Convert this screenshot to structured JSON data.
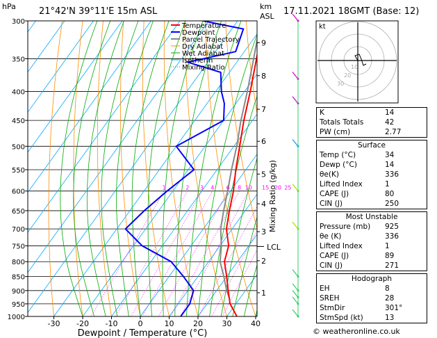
{
  "header": {
    "hpa_label": "hPa",
    "location": "21°42'N  39°11'E  15m  ASL",
    "km_label": "km",
    "asl_label": "ASL",
    "date": "17.11.2021  18GMT  (Base: 12)"
  },
  "chart_data": {
    "type": "skew-t",
    "xlabel": "Dewpoint / Temperature (°C)",
    "x_ticks": [
      -30,
      -20,
      -10,
      0,
      10,
      20,
      30,
      40
    ],
    "p_ticks": [
      300,
      350,
      400,
      450,
      500,
      550,
      600,
      650,
      700,
      750,
      800,
      850,
      900,
      950,
      1000
    ],
    "km_ticks": [
      {
        "label": "1",
        "p": 908
      },
      {
        "label": "2",
        "p": 797
      },
      {
        "label": "3",
        "p": 708
      },
      {
        "label": "4",
        "p": 632
      },
      {
        "label": "5",
        "p": 560
      },
      {
        "label": "6",
        "p": 490
      },
      {
        "label": "7",
        "p": 430
      },
      {
        "label": "8",
        "p": 375
      },
      {
        "label": "9",
        "p": 328
      }
    ],
    "lcl": {
      "label": "LCL",
      "p": 752
    },
    "right_axis_label": "Mixing Ratio (g/kg)",
    "mixing_ratio_labels": [
      "1",
      "2",
      "3",
      "4",
      "6",
      "8",
      "10",
      "15",
      "20",
      "25"
    ],
    "legend": [
      "Temperature",
      "Dewpoint",
      "Parcel Trajectory",
      "Dry Adiabat",
      "Wet Adiabat",
      "Isotherm",
      "Mixing Ratio"
    ],
    "temperature": [
      [
        1000,
        33.5
      ],
      [
        950,
        28
      ],
      [
        900,
        24
      ],
      [
        850,
        20
      ],
      [
        800,
        15.5
      ],
      [
        750,
        13
      ],
      [
        700,
        8
      ],
      [
        650,
        4.5
      ],
      [
        600,
        1
      ],
      [
        550,
        -3.5
      ],
      [
        500,
        -8
      ],
      [
        450,
        -13
      ],
      [
        400,
        -18
      ],
      [
        350,
        -24
      ],
      [
        300,
        -31
      ]
    ],
    "dewpoint": [
      [
        1000,
        14
      ],
      [
        950,
        14
      ],
      [
        900,
        12
      ],
      [
        850,
        5
      ],
      [
        800,
        -3
      ],
      [
        750,
        -17
      ],
      [
        700,
        -27
      ],
      [
        650,
        -25
      ],
      [
        600,
        -22
      ],
      [
        550,
        -18
      ],
      [
        500,
        -30
      ],
      [
        450,
        -20
      ],
      [
        420,
        -24
      ],
      [
        400,
        -28
      ],
      [
        370,
        -33
      ],
      [
        355,
        -47
      ],
      [
        340,
        -33
      ],
      [
        310,
        -36
      ],
      [
        300,
        -52
      ]
    ],
    "parcel": [
      [
        925,
        26
      ],
      [
        900,
        23.5
      ],
      [
        850,
        19
      ],
      [
        800,
        14
      ],
      [
        750,
        10.5
      ],
      [
        700,
        6
      ],
      [
        650,
        2.5
      ],
      [
        600,
        -1
      ],
      [
        550,
        -5
      ],
      [
        500,
        -9
      ],
      [
        450,
        -14
      ],
      [
        400,
        -19
      ],
      [
        350,
        -25
      ],
      [
        300,
        -32
      ]
    ]
  },
  "hodograph": {
    "unit_label": "kt",
    "ring_labels": [
      "10",
      "20",
      "30"
    ]
  },
  "indices": {
    "main": [
      {
        "label": "K",
        "value": "14"
      },
      {
        "label": "Totals Totals",
        "value": "42"
      },
      {
        "label": "PW (cm)",
        "value": "2.77"
      }
    ],
    "surface": {
      "title": "Surface",
      "rows": [
        {
          "label": "Temp (°C)",
          "value": "34"
        },
        {
          "label": "Dewp (°C)",
          "value": "14"
        },
        {
          "label": "θe(K)",
          "value": "336"
        },
        {
          "label": "Lifted Index",
          "value": "1"
        },
        {
          "label": "CAPE (J)",
          "value": "80"
        },
        {
          "label": "CIN (J)",
          "value": "250"
        }
      ]
    },
    "unstable": {
      "title": "Most Unstable",
      "rows": [
        {
          "label": "Pressure (mb)",
          "value": "925"
        },
        {
          "label": "θe (K)",
          "value": "336"
        },
        {
          "label": "Lifted Index",
          "value": "1"
        },
        {
          "label": "CAPE (J)",
          "value": "89"
        },
        {
          "label": "CIN (J)",
          "value": "271"
        }
      ]
    },
    "hodo": {
      "title": "Hodograph",
      "rows": [
        {
          "label": "EH",
          "value": "8"
        },
        {
          "label": "SREH",
          "value": "28"
        },
        {
          "label": "StmDir",
          "value": "301°"
        },
        {
          "label": "StmSpd (kt)",
          "value": "13"
        }
      ]
    }
  },
  "copyright": "© weatheronline.co.uk",
  "colors": {
    "temperature": "#ff0000",
    "dewpoint": "#0000ff",
    "parcel": "#888888",
    "dry": "#ff8c00",
    "wet": "#00aa00",
    "iso": "#00aaff",
    "mix": "#ff00ff"
  }
}
